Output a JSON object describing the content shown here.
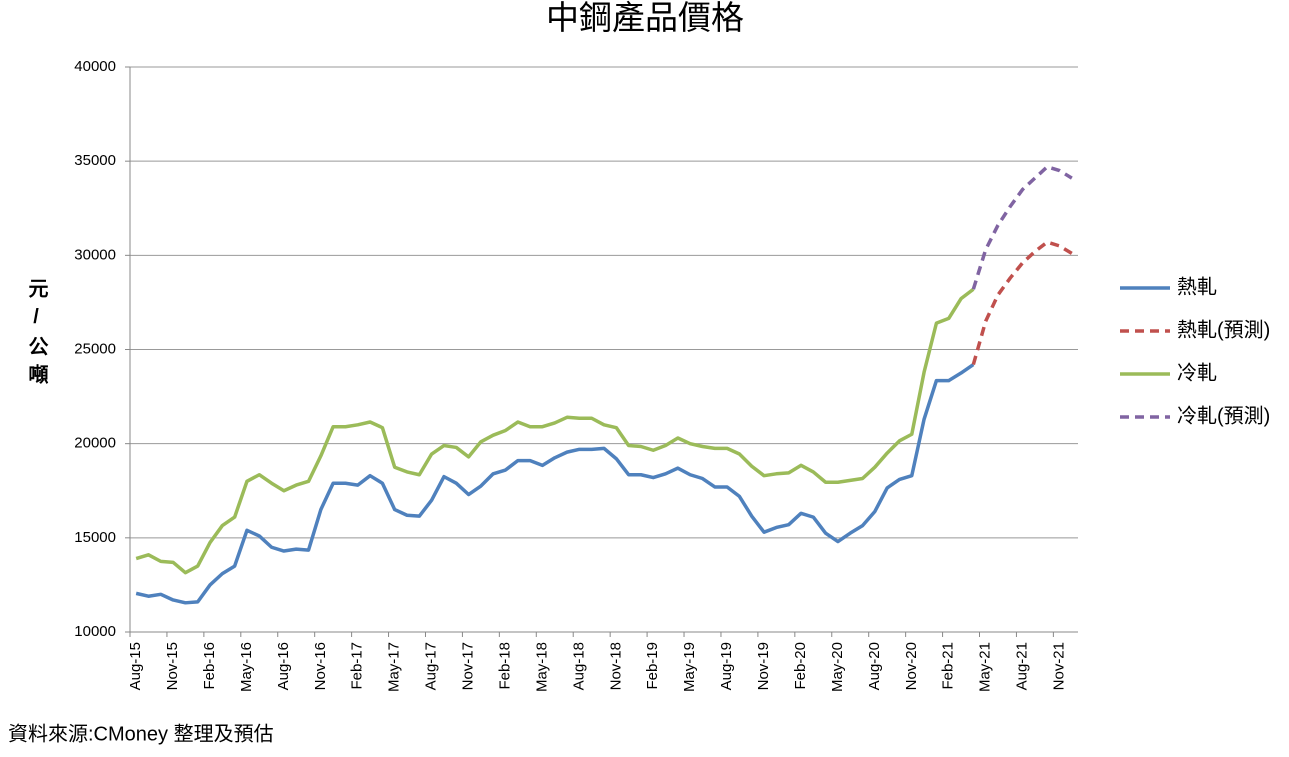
{
  "chart_data": {
    "type": "line",
    "title": "中鋼產品價格",
    "y_label": "元/公噸",
    "source": "資料來源:CMoney 整理及預估",
    "categories": [
      "Aug-15",
      null,
      null,
      "Nov-15",
      null,
      null,
      "Feb-16",
      null,
      null,
      "May-16",
      null,
      null,
      "Aug-16",
      null,
      null,
      "Nov-16",
      null,
      null,
      "Feb-17",
      null,
      null,
      "May-17",
      null,
      null,
      "Aug-17",
      null,
      null,
      "Nov-17",
      null,
      null,
      "Feb-18",
      null,
      null,
      "May-18",
      null,
      null,
      "Aug-18",
      null,
      null,
      "Nov-18",
      null,
      null,
      "Feb-19",
      null,
      null,
      "May-19",
      null,
      null,
      "Aug-19",
      null,
      null,
      "Nov-19",
      null,
      null,
      "Feb-20",
      null,
      null,
      "May-20",
      null,
      null,
      "Aug-20",
      null,
      null,
      "Nov-20",
      null,
      null,
      "Feb-21",
      null,
      null,
      "May-21",
      null,
      null,
      "Aug-21",
      null,
      null,
      "Nov-21",
      null
    ],
    "series": [
      {
        "name": "熱軋",
        "color": "#4f81bd",
        "style": "solid",
        "values": [
          12050,
          11900,
          12000,
          11700,
          11550,
          11600,
          12500,
          13100,
          13500,
          15400,
          15100,
          14500,
          14300,
          14400,
          14350,
          16500,
          17900,
          17900,
          17800,
          18300,
          17900,
          16500,
          16200,
          16150,
          17000,
          18250,
          17900,
          17300,
          17750,
          18400,
          18600,
          19100,
          19100,
          18850,
          19250,
          19550,
          19700,
          19700,
          19750,
          19200,
          18350,
          18350,
          18200,
          18400,
          18700,
          18350,
          18150,
          17700,
          17700,
          17200,
          16150,
          15300,
          15550,
          15700,
          16300,
          16100,
          15250,
          14800,
          15250,
          15650,
          16400,
          17650,
          18100,
          18300,
          21300,
          23350,
          23350,
          23750,
          24200,
          null,
          null,
          null,
          null,
          null,
          null,
          null,
          null
        ]
      },
      {
        "name": "熱軋(預測)",
        "color": "#c0504d",
        "style": "dashed",
        "values": [
          null,
          null,
          null,
          null,
          null,
          null,
          null,
          null,
          null,
          null,
          null,
          null,
          null,
          null,
          null,
          null,
          null,
          null,
          null,
          null,
          null,
          null,
          null,
          null,
          null,
          null,
          null,
          null,
          null,
          null,
          null,
          null,
          null,
          null,
          null,
          null,
          null,
          null,
          null,
          null,
          null,
          null,
          null,
          null,
          null,
          null,
          null,
          null,
          null,
          null,
          null,
          null,
          null,
          null,
          null,
          null,
          null,
          null,
          null,
          null,
          null,
          null,
          null,
          null,
          null,
          null,
          null,
          null,
          24200,
          26500,
          27900,
          28800,
          29600,
          30200,
          30700,
          30500,
          30100
        ]
      },
      {
        "name": "冷軋",
        "color": "#9bbb59",
        "style": "solid",
        "values": [
          13900,
          14100,
          13750,
          13700,
          13150,
          13500,
          14750,
          15650,
          16100,
          18000,
          18350,
          17900,
          17500,
          17800,
          18000,
          19350,
          20900,
          20900,
          21000,
          21150,
          20850,
          18750,
          18500,
          18350,
          19450,
          19900,
          19800,
          19300,
          20100,
          20450,
          20700,
          21150,
          20900,
          20900,
          21100,
          21400,
          21350,
          21350,
          21000,
          20850,
          19900,
          19850,
          19650,
          19900,
          20300,
          20000,
          19850,
          19750,
          19750,
          19450,
          18800,
          18300,
          18400,
          18450,
          18850,
          18500,
          17950,
          17950,
          18050,
          18150,
          18750,
          19500,
          20150,
          20500,
          23800,
          26400,
          26650,
          27700,
          28200,
          null,
          null,
          null,
          null,
          null,
          null,
          null,
          null
        ]
      },
      {
        "name": "冷軋(預測)",
        "color": "#8064a2",
        "style": "dashed",
        "values": [
          null,
          null,
          null,
          null,
          null,
          null,
          null,
          null,
          null,
          null,
          null,
          null,
          null,
          null,
          null,
          null,
          null,
          null,
          null,
          null,
          null,
          null,
          null,
          null,
          null,
          null,
          null,
          null,
          null,
          null,
          null,
          null,
          null,
          null,
          null,
          null,
          null,
          null,
          null,
          null,
          null,
          null,
          null,
          null,
          null,
          null,
          null,
          null,
          null,
          null,
          null,
          null,
          null,
          null,
          null,
          null,
          null,
          null,
          null,
          null,
          null,
          null,
          null,
          null,
          null,
          null,
          null,
          null,
          28200,
          30300,
          31600,
          32600,
          33500,
          34100,
          34700,
          34500,
          34100
        ]
      }
    ],
    "ylim": [
      10000,
      40000
    ],
    "yticks": [
      10000,
      15000,
      20000,
      25000,
      30000,
      35000,
      40000
    ],
    "grid": true,
    "legend": "right"
  }
}
